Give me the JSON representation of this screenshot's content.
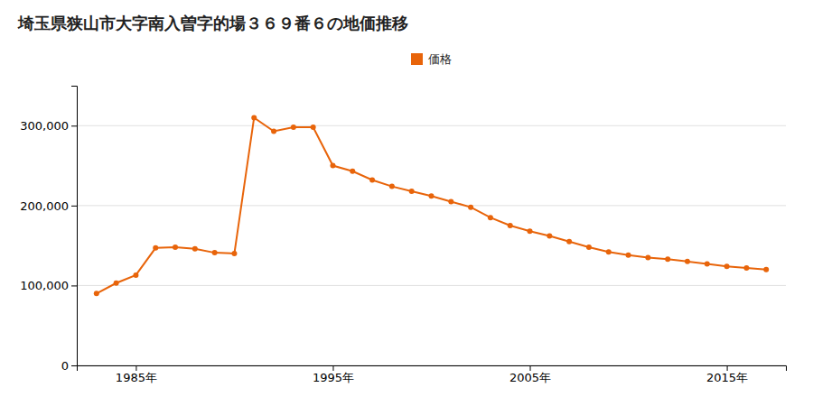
{
  "chart_data": {
    "type": "line",
    "title": "埼玉県狭山市大字南入曽字的場３６９番６の地価推移",
    "x": [
      1983,
      1984,
      1985,
      1986,
      1987,
      1988,
      1989,
      1990,
      1991,
      1992,
      1993,
      1994,
      1995,
      1996,
      1997,
      1998,
      1999,
      2000,
      2001,
      2002,
      2003,
      2004,
      2005,
      2006,
      2007,
      2008,
      2009,
      2010,
      2011,
      2012,
      2013,
      2014,
      2015,
      2016,
      2017
    ],
    "series": [
      {
        "name": "価格",
        "color": "#e8640a",
        "marker": "circle",
        "values": [
          90000,
          103000,
          113000,
          147000,
          148000,
          146000,
          141000,
          140000,
          310000,
          293000,
          298000,
          298000,
          250000,
          243000,
          232000,
          224000,
          218000,
          212000,
          205000,
          198000,
          185000,
          175000,
          168000,
          162000,
          155000,
          148000,
          142000,
          138000,
          135000,
          133000,
          130000,
          127000,
          124000,
          122000,
          120000
        ]
      }
    ],
    "xlim": [
      1982,
      2018
    ],
    "xticks": [
      {
        "value": 1985,
        "label": "1985年"
      },
      {
        "value": 1995,
        "label": "1995年"
      },
      {
        "value": 2005,
        "label": "2005年"
      },
      {
        "value": 2015,
        "label": "2015年"
      }
    ],
    "ylim": [
      0,
      350000
    ],
    "yticks": [
      0,
      {
        "value": 100000,
        "label": "100,000"
      },
      {
        "value": 200000,
        "label": "200,000"
      },
      {
        "value": 300000,
        "label": "300,000"
      }
    ],
    "grid": true,
    "legend": "top"
  }
}
